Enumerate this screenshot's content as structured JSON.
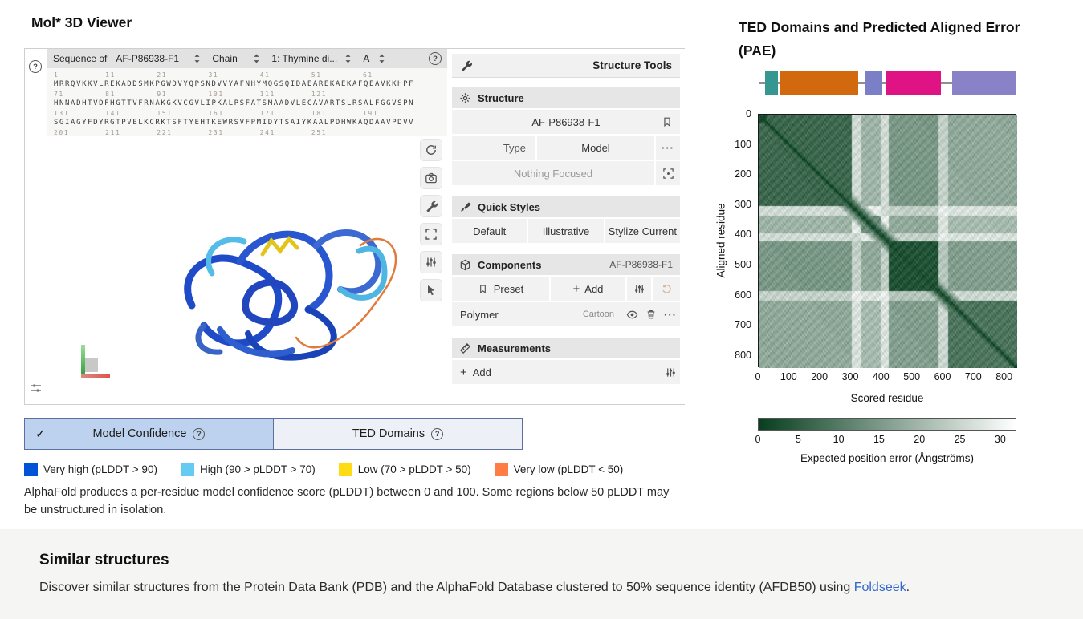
{
  "header": {
    "viewer_title": "Mol* 3D Viewer",
    "pae_title_line1": "TED Domains and Predicted Aligned Error",
    "pae_title_line2": "(PAE)"
  },
  "icons": {
    "help": "?",
    "check": "✓",
    "plus": "+",
    "dots": "···"
  },
  "molstar": {
    "sequence_bar": {
      "label": "Sequence of",
      "entry": "AF-P86938-F1",
      "mode": "Chain",
      "chain": "1: Thymine di...",
      "operator": "A"
    },
    "sequence_rows": [
      {
        "numbers": "1         11        21        31        41        51        61",
        "residues": "MRRQVKKVLREKADDSMKPGWDVYQPSNDVVYAFNHYMQGSQIDAEAREKAEKAFQEAVKKHPF"
      },
      {
        "numbers": "71        81        91        101       111       121",
        "residues": "HNNADHTVDFHGTTVFRNAKGKVCGVLIPKALPSFATSMAADVLECAVARTSLRSALFGGVSPN"
      },
      {
        "numbers": "131       141       151       161       171       181       191",
        "residues": "SGIAGYFDYRGTPVELKCRKTSFTYEHTKEWRSVFPMIDYTSAIYKAALPDHWKAQDAAVPDVV"
      },
      {
        "numbers": "201       211       221       231       241       251",
        "residues": ""
      }
    ],
    "structure_tools": {
      "title": "Structure Tools",
      "structure_section": {
        "title": "Structure",
        "entry": "AF-P86938-F1",
        "type_label": "Type",
        "type_value": "Model",
        "focus_placeholder": "Nothing Focused"
      },
      "quick_styles": {
        "title": "Quick Styles",
        "buttons": [
          "Default",
          "Illustrative",
          "Stylize Current"
        ]
      },
      "components": {
        "title": "Components",
        "entry": "AF-P86938-F1",
        "preset": "Preset",
        "add": "Add",
        "polymer_label": "Polymer",
        "polymer_repr": "Cartoon"
      },
      "measurements": {
        "title": "Measurements",
        "add": "Add"
      }
    }
  },
  "tabs": {
    "model_confidence": {
      "label": "Model Confidence",
      "selected": true
    },
    "ted_domains": {
      "label": "TED Domains",
      "selected": false
    }
  },
  "legend": {
    "items": [
      {
        "color": "#0053D6",
        "label": "Very high (pLDDT > 90)"
      },
      {
        "color": "#65CBF3",
        "label": "High (90 > pLDDT > 70)"
      },
      {
        "color": "#FFDB13",
        "label": "Low (70 > pLDDT > 50)"
      },
      {
        "color": "#FF7D45",
        "label": "Very low (pLDDT < 50)"
      }
    ]
  },
  "confidence_note": "AlphaFold produces a per-residue model confidence score (pLDDT) between 0 and 100. Some regions below 50 pLDDT may be unstructured in isolation.",
  "ted_domain_track": {
    "segments": [
      {
        "color": "#35978f",
        "start": 0.028,
        "width": 0.05
      },
      {
        "color": "#d2690f",
        "start": 0.088,
        "width": 0.301
      },
      {
        "color": "#7b80c6",
        "start": 0.413,
        "width": 0.068
      },
      {
        "color": "#e01384",
        "start": 0.497,
        "width": 0.211
      },
      {
        "color": "#8a82c6",
        "start": 0.751,
        "width": 0.249
      }
    ]
  },
  "chart_data": {
    "type": "heatmap",
    "title": "Predicted Aligned Error (PAE)",
    "xlabel": "Scored residue",
    "ylabel": "Aligned residue",
    "x_ticks": [
      0,
      100,
      200,
      300,
      400,
      500,
      600,
      700,
      800
    ],
    "y_ticks": [
      0,
      100,
      200,
      300,
      400,
      500,
      600,
      700,
      800
    ],
    "xlim": [
      0,
      840
    ],
    "ylim": [
      0,
      840
    ],
    "grid": false,
    "colorbar": {
      "label": "Expected position error (Ångströms)",
      "ticks": [
        0,
        5,
        10,
        15,
        20,
        25,
        30
      ],
      "max": 32,
      "min_color": "#073e1e",
      "max_color": "#ffffff"
    },
    "description": "Green PAE matrix: dark (low error) along the diagonal and inside domain blocks (~0-300, ~400-575, ~600-840); pale high-error bands at inter-domain linkers (~300-420, ~575-610)."
  },
  "similar": {
    "title": "Similar structures",
    "text_before": "Discover similar structures from the Protein Data Bank (PDB) and the AlphaFold Database clustered to 50% sequence identity (AFDB50) using ",
    "link": "Foldseek",
    "text_after": "."
  }
}
